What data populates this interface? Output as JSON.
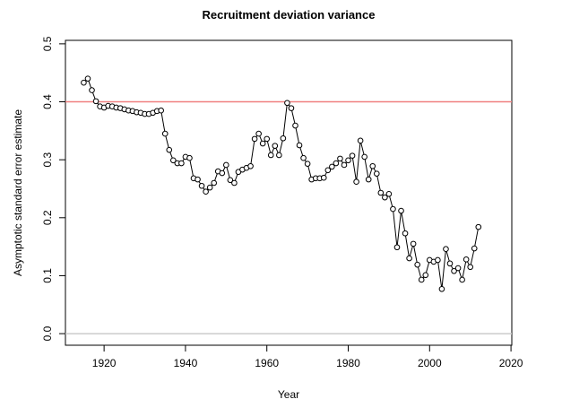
{
  "chart_data": {
    "type": "line",
    "title": "Recruitment deviation variance",
    "x_label": "Year",
    "y_label": "Asymptotic standard error estimate",
    "x": [
      1915,
      1916,
      1917,
      1918,
      1919,
      1920,
      1921,
      1922,
      1923,
      1924,
      1925,
      1926,
      1927,
      1928,
      1929,
      1930,
      1931,
      1932,
      1933,
      1934,
      1935,
      1936,
      1937,
      1938,
      1939,
      1940,
      1941,
      1942,
      1943,
      1944,
      1945,
      1946,
      1947,
      1948,
      1949,
      1950,
      1951,
      1952,
      1953,
      1954,
      1955,
      1956,
      1957,
      1958,
      1959,
      1960,
      1961,
      1962,
      1963,
      1964,
      1965,
      1966,
      1967,
      1968,
      1969,
      1970,
      1971,
      1972,
      1973,
      1974,
      1975,
      1976,
      1977,
      1978,
      1979,
      1980,
      1981,
      1982,
      1983,
      1984,
      1985,
      1986,
      1987,
      1988,
      1989,
      1990,
      1991,
      1992,
      1993,
      1994,
      1995,
      1996,
      1997,
      1998,
      1999,
      2000,
      2001,
      2002,
      2003,
      2004,
      2005,
      2006,
      2007,
      2008,
      2009,
      2010,
      2011,
      2012
    ],
    "values": [
      0.433,
      0.44,
      0.42,
      0.401,
      0.392,
      0.39,
      0.393,
      0.392,
      0.39,
      0.389,
      0.387,
      0.385,
      0.384,
      0.382,
      0.381,
      0.379,
      0.379,
      0.381,
      0.384,
      0.385,
      0.345,
      0.317,
      0.299,
      0.294,
      0.294,
      0.305,
      0.303,
      0.268,
      0.266,
      0.255,
      0.245,
      0.252,
      0.26,
      0.28,
      0.277,
      0.291,
      0.265,
      0.26,
      0.279,
      0.283,
      0.286,
      0.289,
      0.336,
      0.345,
      0.328,
      0.336,
      0.308,
      0.324,
      0.308,
      0.337,
      0.398,
      0.389,
      0.359,
      0.325,
      0.303,
      0.293,
      0.266,
      0.268,
      0.268,
      0.269,
      0.282,
      0.288,
      0.294,
      0.302,
      0.291,
      0.299,
      0.307,
      0.262,
      0.333,
      0.305,
      0.266,
      0.289,
      0.276,
      0.243,
      0.235,
      0.241,
      0.215,
      0.149,
      0.212,
      0.173,
      0.13,
      0.155,
      0.119,
      0.093,
      0.101,
      0.127,
      0.124,
      0.127,
      0.077,
      0.146,
      0.121,
      0.108,
      0.113,
      0.093,
      0.128,
      0.115,
      0.147,
      0.184
    ],
    "color": "#000000",
    "xlim": [
      1910.5,
      2020.2
    ],
    "xticks": [
      1920,
      1940,
      1960,
      1980,
      2000,
      2020
    ],
    "ylim": [
      -0.02,
      0.506
    ],
    "yticks": [
      {
        "value": 0,
        "label": "0.0"
      },
      0.1,
      0.2,
      0.3,
      0.4,
      0.5
    ],
    "reference_lines": [
      {
        "value": 0.4,
        "color": "#f08080"
      },
      {
        "value": 0,
        "color": "#cccccc"
      }
    ]
  }
}
